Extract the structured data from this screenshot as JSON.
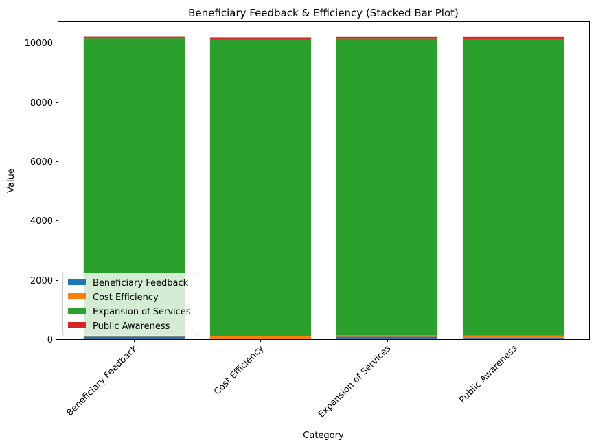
{
  "chart_data": {
    "type": "bar",
    "stacked": true,
    "title": "Beneficiary Feedback & Efficiency (Stacked Bar Plot)",
    "xlabel": "Category",
    "ylabel": "Value",
    "categories": [
      "Beneficiary Feedback",
      "Cost Efficiency",
      "Expansion of Services",
      "Public Awareness"
    ],
    "series": [
      {
        "name": "Beneficiary Feedback",
        "color": "#1f77b4",
        "values": [
          85,
          20,
          80,
          45
        ]
      },
      {
        "name": "Cost Efficiency",
        "color": "#ff7f0e",
        "values": [
          55,
          90,
          50,
          75
        ]
      },
      {
        "name": "Expansion of Services",
        "color": "#2ca02c",
        "values": [
          10000,
          10000,
          10000,
          10000
        ]
      },
      {
        "name": "Public Awareness",
        "color": "#d62728",
        "values": [
          60,
          70,
          65,
          75
        ]
      }
    ],
    "yticks": [
      0,
      2000,
      4000,
      6000,
      8000,
      10000
    ],
    "ylim": [
      0,
      10700
    ],
    "legend_position": "lower-left",
    "grid": false
  }
}
